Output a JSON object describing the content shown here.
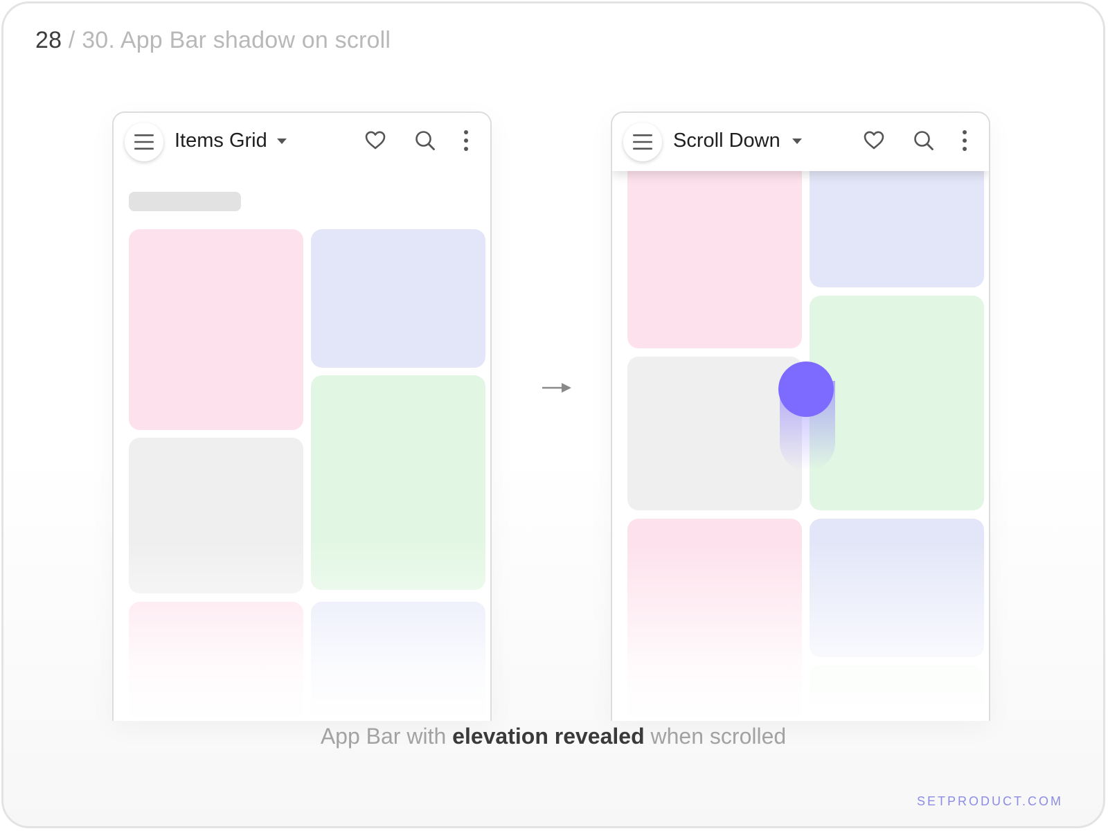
{
  "header": {
    "number": "28",
    "separator": "/",
    "title": "30. App Bar shadow on scroll"
  },
  "screens": [
    {
      "title": "Items Grid",
      "elevated": false
    },
    {
      "title": "Scroll Down",
      "elevated": true
    }
  ],
  "icons": [
    "menu-icon",
    "chevron-down-icon",
    "heart-icon",
    "search-icon",
    "more-vertical-icon",
    "arrow-right-icon"
  ],
  "caption": {
    "prefix": "App Bar with",
    "emphasis": "elevation revealed",
    "suffix": "when scrolled"
  },
  "brand": "SETPRODUCT.COM",
  "colors": {
    "touch": "#7d6bff",
    "tile_pink": "#fde1ec",
    "tile_blue": "#e3e6f8",
    "tile_green": "#e2f7e3",
    "tile_gray": "#efefef",
    "brand": "#8c8ce6"
  }
}
